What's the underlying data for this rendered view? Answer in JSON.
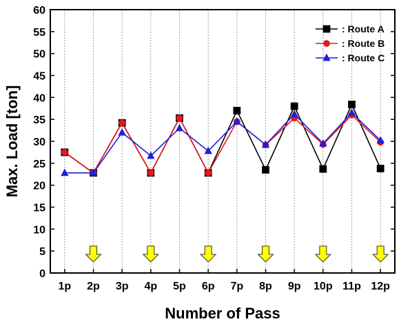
{
  "chart_data": {
    "type": "line",
    "xlabel": "Number of Pass",
    "ylabel": "Max. Load [ton]",
    "ylim": [
      0,
      60
    ],
    "yticks": [
      0,
      5,
      10,
      15,
      20,
      25,
      30,
      35,
      40,
      45,
      50,
      55,
      60
    ],
    "categories": [
      "1p",
      "2p",
      "3p",
      "4p",
      "5p",
      "6p",
      "7p",
      "8p",
      "9p",
      "10p",
      "11p",
      "12p"
    ],
    "grid": "vertical dotted",
    "legend_position": "top-right",
    "series": [
      {
        "name": ": Route A",
        "color": "#000000",
        "marker": "square",
        "values": [
          27.5,
          22.8,
          34.2,
          22.8,
          35.3,
          22.8,
          37.0,
          23.5,
          38.0,
          23.7,
          38.4,
          23.8
        ]
      },
      {
        "name": ": Route B",
        "color": "#e8161c",
        "marker": "circle",
        "values": [
          27.5,
          22.8,
          34.2,
          22.8,
          35.3,
          22.8,
          34.5,
          29.2,
          35.3,
          29.3,
          36.0,
          29.8
        ]
      },
      {
        "name": ": Route C",
        "color": "#1f1fd6",
        "marker": "triangle",
        "values": [
          22.8,
          22.8,
          32.0,
          26.7,
          33.0,
          27.8,
          34.5,
          29.2,
          36.2,
          29.5,
          36.5,
          30.2
        ]
      }
    ],
    "markers": {
      "name": "down-arrow",
      "color": "#ffff00",
      "stroke": "#333333",
      "at_categories": [
        "2p",
        "4p",
        "6p",
        "8p",
        "10p",
        "12p"
      ]
    }
  }
}
